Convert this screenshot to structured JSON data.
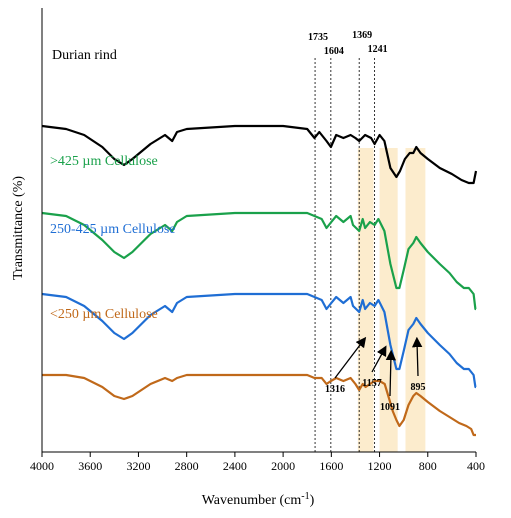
{
  "chart_data": {
    "type": "line",
    "title": "",
    "xlabel": "Wavenumber (cm",
    "xlabel_sup": "-1",
    "xlabel_close": ")",
    "ylabel": "Transmittance (%)",
    "xlim": [
      4000,
      400
    ],
    "x_reversed": true,
    "y_ticks_shown": false,
    "grid": false,
    "x_ticks": [
      "4000",
      "3600",
      "3200",
      "2800",
      "2400",
      "2000",
      "1600",
      "1200",
      "800",
      "400"
    ],
    "x_tick_values": [
      4000,
      3600,
      3200,
      2800,
      2400,
      2000,
      1600,
      1200,
      800,
      400
    ],
    "reference_lines": [
      {
        "x": 1735,
        "label": "1735"
      },
      {
        "x": 1604,
        "label": "1604"
      },
      {
        "x": 1369,
        "label": "1369"
      },
      {
        "x": 1241,
        "label": "1241"
      }
    ],
    "highlight_bands": [
      {
        "from": 1380,
        "to": 1250
      },
      {
        "from": 1200,
        "to": 1050
      },
      {
        "from": 985,
        "to": 820
      }
    ],
    "annotations": [
      {
        "label": "1316",
        "x": 1316
      },
      {
        "label": "1157",
        "x": 1157
      },
      {
        "label": "1091",
        "x": 1091
      },
      {
        "label": "895",
        "x": 895
      }
    ],
    "series": [
      {
        "name": "Durian rind",
        "color": "#000000",
        "label_color": "#000000",
        "points": [
          [
            4000,
            93
          ],
          [
            3800,
            92
          ],
          [
            3650,
            90
          ],
          [
            3500,
            86
          ],
          [
            3400,
            82
          ],
          [
            3320,
            80
          ],
          [
            3250,
            82
          ],
          [
            3100,
            87
          ],
          [
            2980,
            90
          ],
          [
            2920,
            88
          ],
          [
            2880,
            91
          ],
          [
            2800,
            92
          ],
          [
            2400,
            93
          ],
          [
            2000,
            93
          ],
          [
            1800,
            92
          ],
          [
            1740,
            89
          ],
          [
            1700,
            91
          ],
          [
            1640,
            88
          ],
          [
            1604,
            86
          ],
          [
            1560,
            90
          ],
          [
            1500,
            89
          ],
          [
            1440,
            90
          ],
          [
            1400,
            89
          ],
          [
            1369,
            88
          ],
          [
            1320,
            90
          ],
          [
            1270,
            89
          ],
          [
            1241,
            87
          ],
          [
            1200,
            90
          ],
          [
            1160,
            88
          ],
          [
            1110,
            79
          ],
          [
            1060,
            76
          ],
          [
            1030,
            78
          ],
          [
            990,
            82
          ],
          [
            950,
            84
          ],
          [
            920,
            84
          ],
          [
            895,
            86
          ],
          [
            860,
            84
          ],
          [
            800,
            82
          ],
          [
            700,
            79
          ],
          [
            600,
            77
          ],
          [
            520,
            75
          ],
          [
            460,
            74
          ],
          [
            420,
            74
          ],
          [
            400,
            78
          ]
        ]
      },
      {
        "name": ">425 µm Cellulose",
        "color": "#1aa14b",
        "label_color": "#1aa14b",
        "points": [
          [
            4000,
            64
          ],
          [
            3800,
            63
          ],
          [
            3650,
            60
          ],
          [
            3500,
            55
          ],
          [
            3400,
            51
          ],
          [
            3320,
            49
          ],
          [
            3250,
            51
          ],
          [
            3100,
            57
          ],
          [
            2980,
            60
          ],
          [
            2920,
            58
          ],
          [
            2880,
            61
          ],
          [
            2800,
            63
          ],
          [
            2400,
            64
          ],
          [
            2000,
            64
          ],
          [
            1800,
            64
          ],
          [
            1740,
            63
          ],
          [
            1680,
            62
          ],
          [
            1640,
            59
          ],
          [
            1600,
            61
          ],
          [
            1560,
            63
          ],
          [
            1500,
            61
          ],
          [
            1440,
            63
          ],
          [
            1420,
            60
          ],
          [
            1369,
            58
          ],
          [
            1340,
            62
          ],
          [
            1320,
            59
          ],
          [
            1280,
            61
          ],
          [
            1241,
            60
          ],
          [
            1210,
            62
          ],
          [
            1160,
            58
          ],
          [
            1110,
            47
          ],
          [
            1060,
            39
          ],
          [
            1035,
            39
          ],
          [
            1000,
            45
          ],
          [
            960,
            52
          ],
          [
            920,
            54
          ],
          [
            895,
            56
          ],
          [
            860,
            54
          ],
          [
            800,
            51
          ],
          [
            700,
            47
          ],
          [
            620,
            44
          ],
          [
            560,
            41
          ],
          [
            500,
            39
          ],
          [
            460,
            39
          ],
          [
            420,
            37
          ],
          [
            405,
            32
          ],
          [
            400,
            32
          ]
        ]
      },
      {
        "name": "250-425 µm Cellulose",
        "color": "#1f6ed4",
        "label_color": "#1f6ed4",
        "points": [
          [
            4000,
            37
          ],
          [
            3800,
            36
          ],
          [
            3650,
            33
          ],
          [
            3500,
            28
          ],
          [
            3400,
            24
          ],
          [
            3320,
            22
          ],
          [
            3250,
            24
          ],
          [
            3100,
            30
          ],
          [
            2980,
            33
          ],
          [
            2920,
            31
          ],
          [
            2880,
            34
          ],
          [
            2800,
            36
          ],
          [
            2400,
            37
          ],
          [
            2000,
            37
          ],
          [
            1800,
            37
          ],
          [
            1740,
            36
          ],
          [
            1680,
            35
          ],
          [
            1640,
            32
          ],
          [
            1600,
            34
          ],
          [
            1560,
            36
          ],
          [
            1500,
            34
          ],
          [
            1440,
            36
          ],
          [
            1420,
            33
          ],
          [
            1369,
            31
          ],
          [
            1340,
            35
          ],
          [
            1320,
            32
          ],
          [
            1280,
            34
          ],
          [
            1241,
            33
          ],
          [
            1210,
            35
          ],
          [
            1160,
            31
          ],
          [
            1110,
            20
          ],
          [
            1060,
            12
          ],
          [
            1035,
            12
          ],
          [
            1000,
            18
          ],
          [
            960,
            25
          ],
          [
            920,
            27
          ],
          [
            895,
            29
          ],
          [
            860,
            27
          ],
          [
            800,
            24
          ],
          [
            700,
            20
          ],
          [
            620,
            17
          ],
          [
            560,
            14
          ],
          [
            500,
            12
          ],
          [
            460,
            12
          ],
          [
            420,
            10
          ],
          [
            405,
            6
          ],
          [
            400,
            6
          ]
        ]
      },
      {
        "name": "<250 µm Cellulose",
        "color": "#c0691a",
        "label_color": "#c0691a",
        "points": [
          [
            4000,
            10
          ],
          [
            3800,
            10
          ],
          [
            3650,
            9
          ],
          [
            3500,
            6
          ],
          [
            3400,
            3
          ],
          [
            3320,
            2
          ],
          [
            3250,
            3
          ],
          [
            3100,
            7
          ],
          [
            2980,
            9
          ],
          [
            2920,
            8
          ],
          [
            2880,
            9
          ],
          [
            2800,
            10
          ],
          [
            2400,
            10
          ],
          [
            2000,
            10
          ],
          [
            1800,
            10
          ],
          [
            1740,
            9
          ],
          [
            1680,
            9
          ],
          [
            1640,
            7
          ],
          [
            1604,
            8
          ],
          [
            1560,
            9
          ],
          [
            1500,
            8
          ],
          [
            1440,
            9
          ],
          [
            1400,
            7
          ],
          [
            1369,
            5
          ],
          [
            1340,
            7
          ],
          [
            1316,
            6
          ],
          [
            1280,
            7
          ],
          [
            1241,
            8
          ],
          [
            1200,
            8
          ],
          [
            1157,
            7
          ],
          [
            1120,
            2
          ],
          [
            1091,
            -2
          ],
          [
            1060,
            -5
          ],
          [
            1035,
            -7
          ],
          [
            1000,
            -5
          ],
          [
            960,
            0
          ],
          [
            920,
            3
          ],
          [
            895,
            4
          ],
          [
            860,
            3
          ],
          [
            800,
            1
          ],
          [
            700,
            -2
          ],
          [
            620,
            -4
          ],
          [
            540,
            -6
          ],
          [
            480,
            -7
          ],
          [
            440,
            -8
          ],
          [
            420,
            -10
          ],
          [
            400,
            -10
          ]
        ]
      }
    ]
  }
}
